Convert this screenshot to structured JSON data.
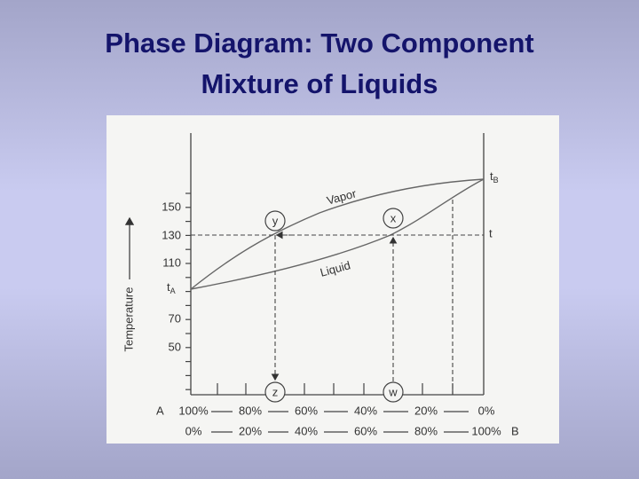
{
  "header": {
    "title_lines": [
      "Phase Diagram:  Two Component",
      "Mixture of Liquids"
    ]
  },
  "diagram": {
    "axis_title": "Temperature",
    "tick_labels": [
      "150",
      "130",
      "110",
      "70",
      "50"
    ],
    "t_a": {
      "main": "t",
      "sub": "A"
    },
    "t_b": {
      "main": "t",
      "sub": "B"
    },
    "t_label": "t",
    "vapor_label": "Vapor",
    "liquid_label": "Liquid",
    "points": [
      "y",
      "x",
      "z",
      "w"
    ],
    "component_a": "A",
    "component_b": "B",
    "row_a": [
      "100%",
      "80%",
      "60%",
      "40%",
      "20%",
      "0%"
    ],
    "row_b": [
      "0%",
      "20%",
      "40%",
      "60%",
      "80%",
      "100%"
    ]
  }
}
